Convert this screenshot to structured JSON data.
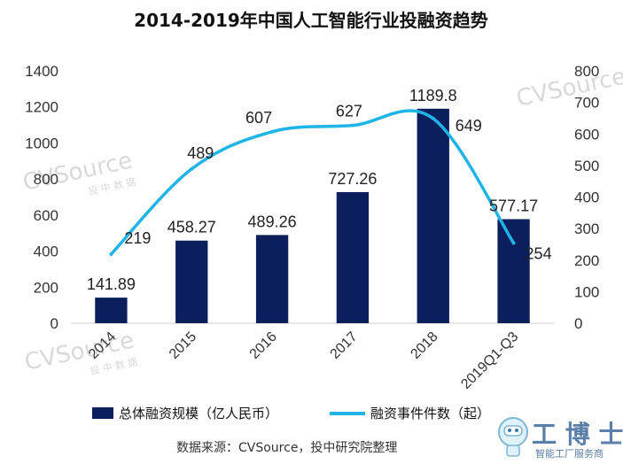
{
  "chart_data": {
    "type": "bar+line",
    "title": "2014-2019年中国人工智能行业投融资趋势",
    "categories": [
      "2014",
      "2015",
      "2016",
      "2017",
      "2018",
      "2019Q1-Q3"
    ],
    "series": [
      {
        "name": "总体融资规模（亿人民币）",
        "type": "bar",
        "axis": "left",
        "color": "#0b1f5c",
        "values": [
          141.89,
          458.27,
          489.26,
          727.26,
          1189.8,
          577.17
        ],
        "labels": [
          "141.89",
          "458.27",
          "489.26",
          "727.26",
          "1189.8",
          "577.17"
        ]
      },
      {
        "name": "融资事件件数（起）",
        "type": "line",
        "axis": "right",
        "color": "#1fb4e8",
        "values": [
          219,
          489,
          607,
          627,
          649,
          254
        ],
        "labels": [
          "219",
          "489",
          "607",
          "627",
          "649",
          "254"
        ]
      }
    ],
    "y_left": {
      "ylim": [
        0,
        1400
      ],
      "ticks": [
        "0",
        "200",
        "400",
        "600",
        "800",
        "1000",
        "1200",
        "1400"
      ]
    },
    "y_right": {
      "ylim": [
        0,
        800
      ],
      "ticks": [
        "0",
        "100",
        "200",
        "300",
        "400",
        "500",
        "600",
        "700",
        "800"
      ]
    },
    "grid": false,
    "legend_position": "bottom"
  },
  "source_text": "数据来源：CVSource，投中研究院整理",
  "watermark": {
    "text": "CVSource",
    "sub": "投 中 数 据"
  },
  "logo": {
    "text": "工 博 士",
    "sub": "智能工厂服务商",
    "accent": "#5a7fa8"
  }
}
